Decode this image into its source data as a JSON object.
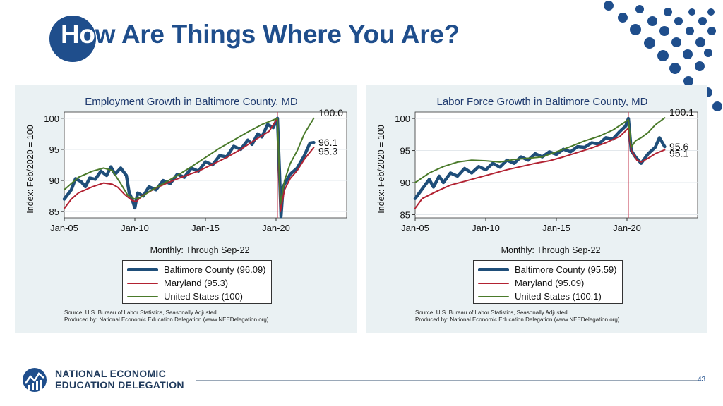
{
  "slide": {
    "title_part1": "Ho",
    "title_part2": "w Are Things Where You Are?",
    "page_number": "43",
    "org_line1": "NATIONAL ECONOMIC",
    "org_line2": "EDUCATION DELEGATION",
    "accent_color": "#1f4e8c"
  },
  "chart_data": [
    {
      "type": "line",
      "title": "Employment Growth in Baltimore County, MD",
      "subtitle": "Monthly: Through Sep-22",
      "ylabel": "Index: Feb/2020 = 100",
      "xlabel": "",
      "xlim": [
        2005.0,
        2025.0
      ],
      "ylim": [
        84,
        101
      ],
      "xticks": [
        {
          "v": 2005,
          "label": "Jan-05"
        },
        {
          "v": 2010,
          "label": "Jan-10"
        },
        {
          "v": 2015,
          "label": "Jan-15"
        },
        {
          "v": 2020,
          "label": "Jan-20"
        }
      ],
      "yticks": [
        85,
        90,
        95,
        100
      ],
      "vline_x": 2020.1,
      "grid": true,
      "series": [
        {
          "name": "Baltimore County (96.09)",
          "color": "#1f4e79",
          "width": 4.5,
          "points": [
            [
              2005.0,
              87.0
            ],
            [
              2005.5,
              88.5
            ],
            [
              2005.8,
              90.3
            ],
            [
              2006.2,
              89.8
            ],
            [
              2006.5,
              89.0
            ],
            [
              2006.8,
              90.4
            ],
            [
              2007.2,
              90.2
            ],
            [
              2007.6,
              91.5
            ],
            [
              2008.0,
              90.8
            ],
            [
              2008.3,
              92.2
            ],
            [
              2008.6,
              91.0
            ],
            [
              2009.0,
              92.0
            ],
            [
              2009.4,
              90.8
            ],
            [
              2009.6,
              88.0
            ],
            [
              2009.8,
              87.0
            ],
            [
              2010.0,
              85.6
            ],
            [
              2010.2,
              88.0
            ],
            [
              2010.6,
              87.5
            ],
            [
              2011.0,
              89.0
            ],
            [
              2011.5,
              88.5
            ],
            [
              2012.0,
              90.0
            ],
            [
              2012.5,
              89.5
            ],
            [
              2013.0,
              91.0
            ],
            [
              2013.5,
              90.5
            ],
            [
              2014.0,
              92.0
            ],
            [
              2014.5,
              91.5
            ],
            [
              2015.0,
              93.0
            ],
            [
              2015.5,
              92.5
            ],
            [
              2016.0,
              94.0
            ],
            [
              2016.5,
              93.8
            ],
            [
              2017.0,
              95.5
            ],
            [
              2017.5,
              95.0
            ],
            [
              2018.0,
              96.5
            ],
            [
              2018.3,
              95.8
            ],
            [
              2018.7,
              97.5
            ],
            [
              2019.0,
              97.0
            ],
            [
              2019.4,
              99.0
            ],
            [
              2019.8,
              98.5
            ],
            [
              2020.1,
              100.0
            ],
            [
              2020.25,
              91.0
            ],
            [
              2020.35,
              84.2
            ],
            [
              2020.5,
              89.0
            ],
            [
              2021.0,
              91.0
            ],
            [
              2021.5,
              92.0
            ],
            [
              2022.0,
              94.0
            ],
            [
              2022.4,
              96.0
            ],
            [
              2022.67,
              96.1
            ]
          ]
        },
        {
          "name": "Maryland (95.3)",
          "color": "#b22232",
          "width": 2,
          "points": [
            [
              2005.0,
              85.5
            ],
            [
              2005.5,
              87.0
            ],
            [
              2006.0,
              88.0
            ],
            [
              2007.0,
              89.0
            ],
            [
              2007.8,
              89.6
            ],
            [
              2008.4,
              89.4
            ],
            [
              2008.8,
              88.9
            ],
            [
              2009.3,
              87.7
            ],
            [
              2009.8,
              86.8
            ],
            [
              2010.1,
              86.6
            ],
            [
              2010.5,
              87.5
            ],
            [
              2011.5,
              88.8
            ],
            [
              2012.5,
              89.8
            ],
            [
              2013.5,
              90.7
            ],
            [
              2014.5,
              91.5
            ],
            [
              2015.5,
              92.6
            ],
            [
              2016.5,
              93.7
            ],
            [
              2017.5,
              95.0
            ],
            [
              2018.5,
              96.5
            ],
            [
              2019.5,
              97.9
            ],
            [
              2020.1,
              100.0
            ],
            [
              2020.3,
              85.0
            ],
            [
              2020.6,
              88.5
            ],
            [
              2021.0,
              90.3
            ],
            [
              2021.5,
              91.6
            ],
            [
              2022.0,
              93.4
            ],
            [
              2022.67,
              95.3
            ]
          ]
        },
        {
          "name": "United States (100)",
          "color": "#4a7a2a",
          "width": 2,
          "points": [
            [
              2005.0,
              88.5
            ],
            [
              2006.0,
              90.5
            ],
            [
              2007.0,
              91.5
            ],
            [
              2007.8,
              92.0
            ],
            [
              2008.4,
              91.6
            ],
            [
              2009.0,
              89.5
            ],
            [
              2009.5,
              87.6
            ],
            [
              2010.0,
              87.0
            ],
            [
              2010.5,
              87.4
            ],
            [
              2011.0,
              88.2
            ],
            [
              2012.0,
              89.5
            ],
            [
              2013.0,
              90.8
            ],
            [
              2014.0,
              92.2
            ],
            [
              2015.0,
              93.7
            ],
            [
              2016.0,
              95.2
            ],
            [
              2017.0,
              96.5
            ],
            [
              2018.0,
              97.8
            ],
            [
              2019.0,
              99.0
            ],
            [
              2020.1,
              100.0
            ],
            [
              2020.3,
              86.2
            ],
            [
              2020.6,
              90.0
            ],
            [
              2021.0,
              92.7
            ],
            [
              2021.5,
              94.8
            ],
            [
              2022.0,
              97.5
            ],
            [
              2022.67,
              100.0
            ]
          ]
        }
      ],
      "annotations": [
        {
          "x": 2022.7,
          "y": 100.0,
          "text": "100.0"
        },
        {
          "x": 2022.7,
          "y": 96.1,
          "text": "96.1"
        },
        {
          "x": 2022.7,
          "y": 95.3,
          "text": "95.3"
        }
      ],
      "source_line1": "Source: U.S. Bureau of Labor Statistics, Seasonally Adjusted",
      "source_line2": "Produced by: National Economic Education Delegation (www.NEEDelegation.org)"
    },
    {
      "type": "line",
      "title": "Labor Force Growth in Baltimore County, MD",
      "subtitle": "Monthly: Through Sep-22",
      "ylabel": "Index: Feb/2020 = 100",
      "xlabel": "",
      "xlim": [
        2005.0,
        2025.0
      ],
      "ylim": [
        84.5,
        101
      ],
      "xticks": [
        {
          "v": 2005,
          "label": "Jan-05"
        },
        {
          "v": 2010,
          "label": "Jan-10"
        },
        {
          "v": 2015,
          "label": "Jan-15"
        },
        {
          "v": 2020,
          "label": "Jan-20"
        }
      ],
      "yticks": [
        85,
        90,
        95,
        100
      ],
      "vline_x": 2020.1,
      "grid": true,
      "series": [
        {
          "name": "Baltimore County (95.59)",
          "color": "#1f4e79",
          "width": 4.5,
          "points": [
            [
              2005.0,
              87.5
            ],
            [
              2005.5,
              89.0
            ],
            [
              2006.0,
              90.5
            ],
            [
              2006.3,
              89.3
            ],
            [
              2006.7,
              91.0
            ],
            [
              2007.0,
              90.0
            ],
            [
              2007.5,
              91.5
            ],
            [
              2008.0,
              91.0
            ],
            [
              2008.5,
              92.2
            ],
            [
              2009.0,
              91.5
            ],
            [
              2009.5,
              92.5
            ],
            [
              2010.0,
              92.0
            ],
            [
              2010.5,
              93.0
            ],
            [
              2011.0,
              92.4
            ],
            [
              2011.5,
              93.5
            ],
            [
              2012.0,
              93.0
            ],
            [
              2012.5,
              94.0
            ],
            [
              2013.0,
              93.5
            ],
            [
              2013.5,
              94.5
            ],
            [
              2014.0,
              94.0
            ],
            [
              2014.5,
              94.8
            ],
            [
              2015.0,
              94.4
            ],
            [
              2015.5,
              95.2
            ],
            [
              2016.0,
              94.8
            ],
            [
              2016.5,
              95.6
            ],
            [
              2017.0,
              95.5
            ],
            [
              2017.5,
              96.2
            ],
            [
              2018.0,
              96.0
            ],
            [
              2018.5,
              97.0
            ],
            [
              2019.0,
              96.8
            ],
            [
              2019.5,
              98.0
            ],
            [
              2019.9,
              98.8
            ],
            [
              2020.1,
              100.0
            ],
            [
              2020.3,
              95.0
            ],
            [
              2020.6,
              94.0
            ],
            [
              2021.0,
              93.0
            ],
            [
              2021.5,
              94.5
            ],
            [
              2022.0,
              95.5
            ],
            [
              2022.3,
              97.0
            ],
            [
              2022.67,
              95.6
            ]
          ]
        },
        {
          "name": "Maryland (95.09)",
          "color": "#b22232",
          "width": 2,
          "points": [
            [
              2005.0,
              86.0
            ],
            [
              2005.5,
              87.5
            ],
            [
              2006.5,
              88.6
            ],
            [
              2007.5,
              89.6
            ],
            [
              2008.5,
              90.2
            ],
            [
              2009.5,
              90.8
            ],
            [
              2010.5,
              91.4
            ],
            [
              2011.5,
              92.0
            ],
            [
              2012.5,
              92.5
            ],
            [
              2013.5,
              93.0
            ],
            [
              2014.5,
              93.4
            ],
            [
              2015.5,
              94.0
            ],
            [
              2016.5,
              94.7
            ],
            [
              2017.5,
              95.4
            ],
            [
              2018.5,
              96.2
            ],
            [
              2019.5,
              97.2
            ],
            [
              2020.1,
              98.5
            ],
            [
              2020.3,
              95.0
            ],
            [
              2020.7,
              93.5
            ],
            [
              2021.0,
              93.2
            ],
            [
              2021.5,
              93.8
            ],
            [
              2022.0,
              94.5
            ],
            [
              2022.67,
              95.1
            ]
          ]
        },
        {
          "name": "United States (100.1)",
          "color": "#4a7a2a",
          "width": 2,
          "points": [
            [
              2005.0,
              90.0
            ],
            [
              2006.0,
              91.5
            ],
            [
              2007.0,
              92.5
            ],
            [
              2008.0,
              93.2
            ],
            [
              2009.0,
              93.5
            ],
            [
              2010.0,
              93.4
            ],
            [
              2011.0,
              93.2
            ],
            [
              2012.0,
              93.6
            ],
            [
              2013.0,
              93.8
            ],
            [
              2014.0,
              94.0
            ],
            [
              2015.0,
              94.8
            ],
            [
              2016.0,
              95.6
            ],
            [
              2017.0,
              96.5
            ],
            [
              2018.0,
              97.2
            ],
            [
              2019.0,
              98.2
            ],
            [
              2020.1,
              99.8
            ],
            [
              2020.3,
              95.5
            ],
            [
              2020.6,
              96.5
            ],
            [
              2021.0,
              97.0
            ],
            [
              2021.5,
              97.8
            ],
            [
              2022.0,
              99.0
            ],
            [
              2022.67,
              100.1
            ]
          ]
        }
      ],
      "annotations": [
        {
          "x": 2022.7,
          "y": 100.1,
          "text": "100.1"
        },
        {
          "x": 2022.7,
          "y": 95.6,
          "text": "95.6"
        },
        {
          "x": 2022.7,
          "y": 95.1,
          "text": "95.1"
        }
      ],
      "source_line1": "Source: U.S. Bureau of Labor Statistics, Seasonally Adjusted",
      "source_line2": "Produced by: National Economic Education Delegation (www.NEEDelegation.org)"
    }
  ]
}
